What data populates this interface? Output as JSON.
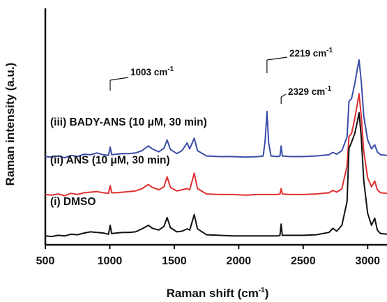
{
  "chart_data": {
    "type": "line",
    "title": "",
    "xlabel": "Raman shift (cm",
    "xlabel_sup": "-1",
    "xlabel_end": ")",
    "ylabel": "Raman intensity (a.u.)",
    "xlim": [
      500,
      3150
    ],
    "x_ticks": [
      500,
      1000,
      1500,
      2000,
      2500,
      3000
    ],
    "y_ticks_shown": false,
    "grid": false,
    "legend": "none",
    "series": [
      {
        "name": "(iii) BADY-ANS (10 μM, 30 min)",
        "color": "#3b4ea8",
        "offset": 2.3,
        "points": [
          [
            500,
            0.02
          ],
          [
            550,
            0.01
          ],
          [
            600,
            0.03
          ],
          [
            650,
            0.0
          ],
          [
            700,
            0.04
          ],
          [
            750,
            0.02
          ],
          [
            800,
            0.06
          ],
          [
            850,
            0.05
          ],
          [
            900,
            0.08
          ],
          [
            950,
            0.05
          ],
          [
            990,
            0.04
          ],
          [
            1003,
            0.18
          ],
          [
            1015,
            0.05
          ],
          [
            1050,
            0.06
          ],
          [
            1100,
            0.07
          ],
          [
            1150,
            0.07
          ],
          [
            1200,
            0.08
          ],
          [
            1250,
            0.12
          ],
          [
            1300,
            0.2
          ],
          [
            1330,
            0.15
          ],
          [
            1380,
            0.1
          ],
          [
            1420,
            0.16
          ],
          [
            1445,
            0.3
          ],
          [
            1470,
            0.14
          ],
          [
            1520,
            0.07
          ],
          [
            1560,
            0.12
          ],
          [
            1600,
            0.25
          ],
          [
            1620,
            0.15
          ],
          [
            1655,
            0.33
          ],
          [
            1680,
            0.12
          ],
          [
            1750,
            0.03
          ],
          [
            1850,
            0.02
          ],
          [
            1950,
            0.02
          ],
          [
            2050,
            0.01
          ],
          [
            2150,
            0.02
          ],
          [
            2190,
            0.03
          ],
          [
            2205,
            0.3
          ],
          [
            2219,
            0.78
          ],
          [
            2232,
            0.25
          ],
          [
            2250,
            0.03
          ],
          [
            2300,
            0.02
          ],
          [
            2320,
            0.03
          ],
          [
            2329,
            0.2
          ],
          [
            2338,
            0.03
          ],
          [
            2400,
            0.02
          ],
          [
            2500,
            0.02
          ],
          [
            2600,
            0.03
          ],
          [
            2700,
            0.05
          ],
          [
            2730,
            0.09
          ],
          [
            2760,
            0.06
          ],
          [
            2800,
            0.12
          ],
          [
            2840,
            0.35
          ],
          [
            2855,
            0.95
          ],
          [
            2875,
            1.0
          ],
          [
            2900,
            1.25
          ],
          [
            2920,
            1.5
          ],
          [
            2933,
            1.65
          ],
          [
            2950,
            1.3
          ],
          [
            2970,
            0.7
          ],
          [
            3000,
            0.3
          ],
          [
            3030,
            0.15
          ],
          [
            3055,
            0.22
          ],
          [
            3075,
            0.1
          ],
          [
            3100,
            0.05
          ],
          [
            3150,
            0.04
          ]
        ]
      },
      {
        "name": "(ii) ANS (10 μM, 30 min)",
        "color": "#e03131",
        "offset": 1.2,
        "points": [
          [
            500,
            0.02
          ],
          [
            550,
            0.01
          ],
          [
            600,
            0.03
          ],
          [
            650,
            0.0
          ],
          [
            700,
            0.04
          ],
          [
            750,
            0.02
          ],
          [
            800,
            0.05
          ],
          [
            850,
            0.06
          ],
          [
            900,
            0.07
          ],
          [
            950,
            0.05
          ],
          [
            990,
            0.04
          ],
          [
            1003,
            0.17
          ],
          [
            1015,
            0.05
          ],
          [
            1050,
            0.05
          ],
          [
            1100,
            0.06
          ],
          [
            1150,
            0.07
          ],
          [
            1200,
            0.08
          ],
          [
            1250,
            0.12
          ],
          [
            1300,
            0.19
          ],
          [
            1330,
            0.14
          ],
          [
            1380,
            0.1
          ],
          [
            1420,
            0.15
          ],
          [
            1445,
            0.32
          ],
          [
            1470,
            0.14
          ],
          [
            1520,
            0.08
          ],
          [
            1560,
            0.1
          ],
          [
            1600,
            0.12
          ],
          [
            1620,
            0.1
          ],
          [
            1655,
            0.38
          ],
          [
            1680,
            0.12
          ],
          [
            1750,
            0.03
          ],
          [
            1850,
            0.02
          ],
          [
            1950,
            0.02
          ],
          [
            2050,
            0.01
          ],
          [
            2150,
            0.02
          ],
          [
            2250,
            0.02
          ],
          [
            2300,
            0.02
          ],
          [
            2320,
            0.03
          ],
          [
            2329,
            0.12
          ],
          [
            2338,
            0.03
          ],
          [
            2400,
            0.02
          ],
          [
            2500,
            0.02
          ],
          [
            2600,
            0.03
          ],
          [
            2700,
            0.05
          ],
          [
            2730,
            0.09
          ],
          [
            2760,
            0.06
          ],
          [
            2800,
            0.12
          ],
          [
            2840,
            0.5
          ],
          [
            2855,
            1.0
          ],
          [
            2875,
            1.05
          ],
          [
            2900,
            1.3
          ],
          [
            2920,
            1.55
          ],
          [
            2933,
            1.72
          ],
          [
            2950,
            1.35
          ],
          [
            2970,
            0.75
          ],
          [
            3000,
            0.3
          ],
          [
            3030,
            0.15
          ],
          [
            3055,
            0.25
          ],
          [
            3075,
            0.1
          ],
          [
            3100,
            0.05
          ],
          [
            3150,
            0.04
          ]
        ]
      },
      {
        "name": "(i) DMSO",
        "color": "#111111",
        "offset": 0.0,
        "points": [
          [
            500,
            0.02
          ],
          [
            550,
            0.01
          ],
          [
            600,
            0.03
          ],
          [
            650,
            0.02
          ],
          [
            700,
            0.05
          ],
          [
            750,
            0.04
          ],
          [
            800,
            0.07
          ],
          [
            850,
            0.09
          ],
          [
            900,
            0.08
          ],
          [
            950,
            0.07
          ],
          [
            990,
            0.05
          ],
          [
            1003,
            0.2
          ],
          [
            1015,
            0.06
          ],
          [
            1050,
            0.07
          ],
          [
            1100,
            0.08
          ],
          [
            1150,
            0.08
          ],
          [
            1200,
            0.09
          ],
          [
            1250,
            0.14
          ],
          [
            1300,
            0.2
          ],
          [
            1330,
            0.15
          ],
          [
            1380,
            0.12
          ],
          [
            1420,
            0.18
          ],
          [
            1445,
            0.33
          ],
          [
            1470,
            0.16
          ],
          [
            1520,
            0.09
          ],
          [
            1560,
            0.1
          ],
          [
            1600,
            0.14
          ],
          [
            1620,
            0.12
          ],
          [
            1655,
            0.38
          ],
          [
            1680,
            0.14
          ],
          [
            1750,
            0.04
          ],
          [
            1850,
            0.03
          ],
          [
            1950,
            0.02
          ],
          [
            2050,
            0.02
          ],
          [
            2150,
            0.02
          ],
          [
            2250,
            0.02
          ],
          [
            2300,
            0.02
          ],
          [
            2320,
            0.03
          ],
          [
            2329,
            0.22
          ],
          [
            2338,
            0.03
          ],
          [
            2400,
            0.03
          ],
          [
            2500,
            0.03
          ],
          [
            2600,
            0.04
          ],
          [
            2700,
            0.08
          ],
          [
            2730,
            0.15
          ],
          [
            2760,
            0.1
          ],
          [
            2800,
            0.2
          ],
          [
            2840,
            0.6
          ],
          [
            2855,
            1.5
          ],
          [
            2875,
            1.6
          ],
          [
            2900,
            1.75
          ],
          [
            2920,
            1.95
          ],
          [
            2933,
            2.1
          ],
          [
            2950,
            1.7
          ],
          [
            2970,
            0.95
          ],
          [
            3000,
            0.4
          ],
          [
            3030,
            0.2
          ],
          [
            3055,
            0.32
          ],
          [
            3075,
            0.12
          ],
          [
            3100,
            0.06
          ],
          [
            3150,
            0.05
          ]
        ]
      }
    ],
    "annotations": [
      {
        "text": "1003 cm",
        "sup": "-1",
        "x": 1003,
        "series": 0
      },
      {
        "text": "2219 cm",
        "sup": "-1",
        "x": 2219,
        "series": 0
      },
      {
        "text": "2329 cm",
        "sup": "-1",
        "x": 2329,
        "series": 0
      }
    ]
  }
}
